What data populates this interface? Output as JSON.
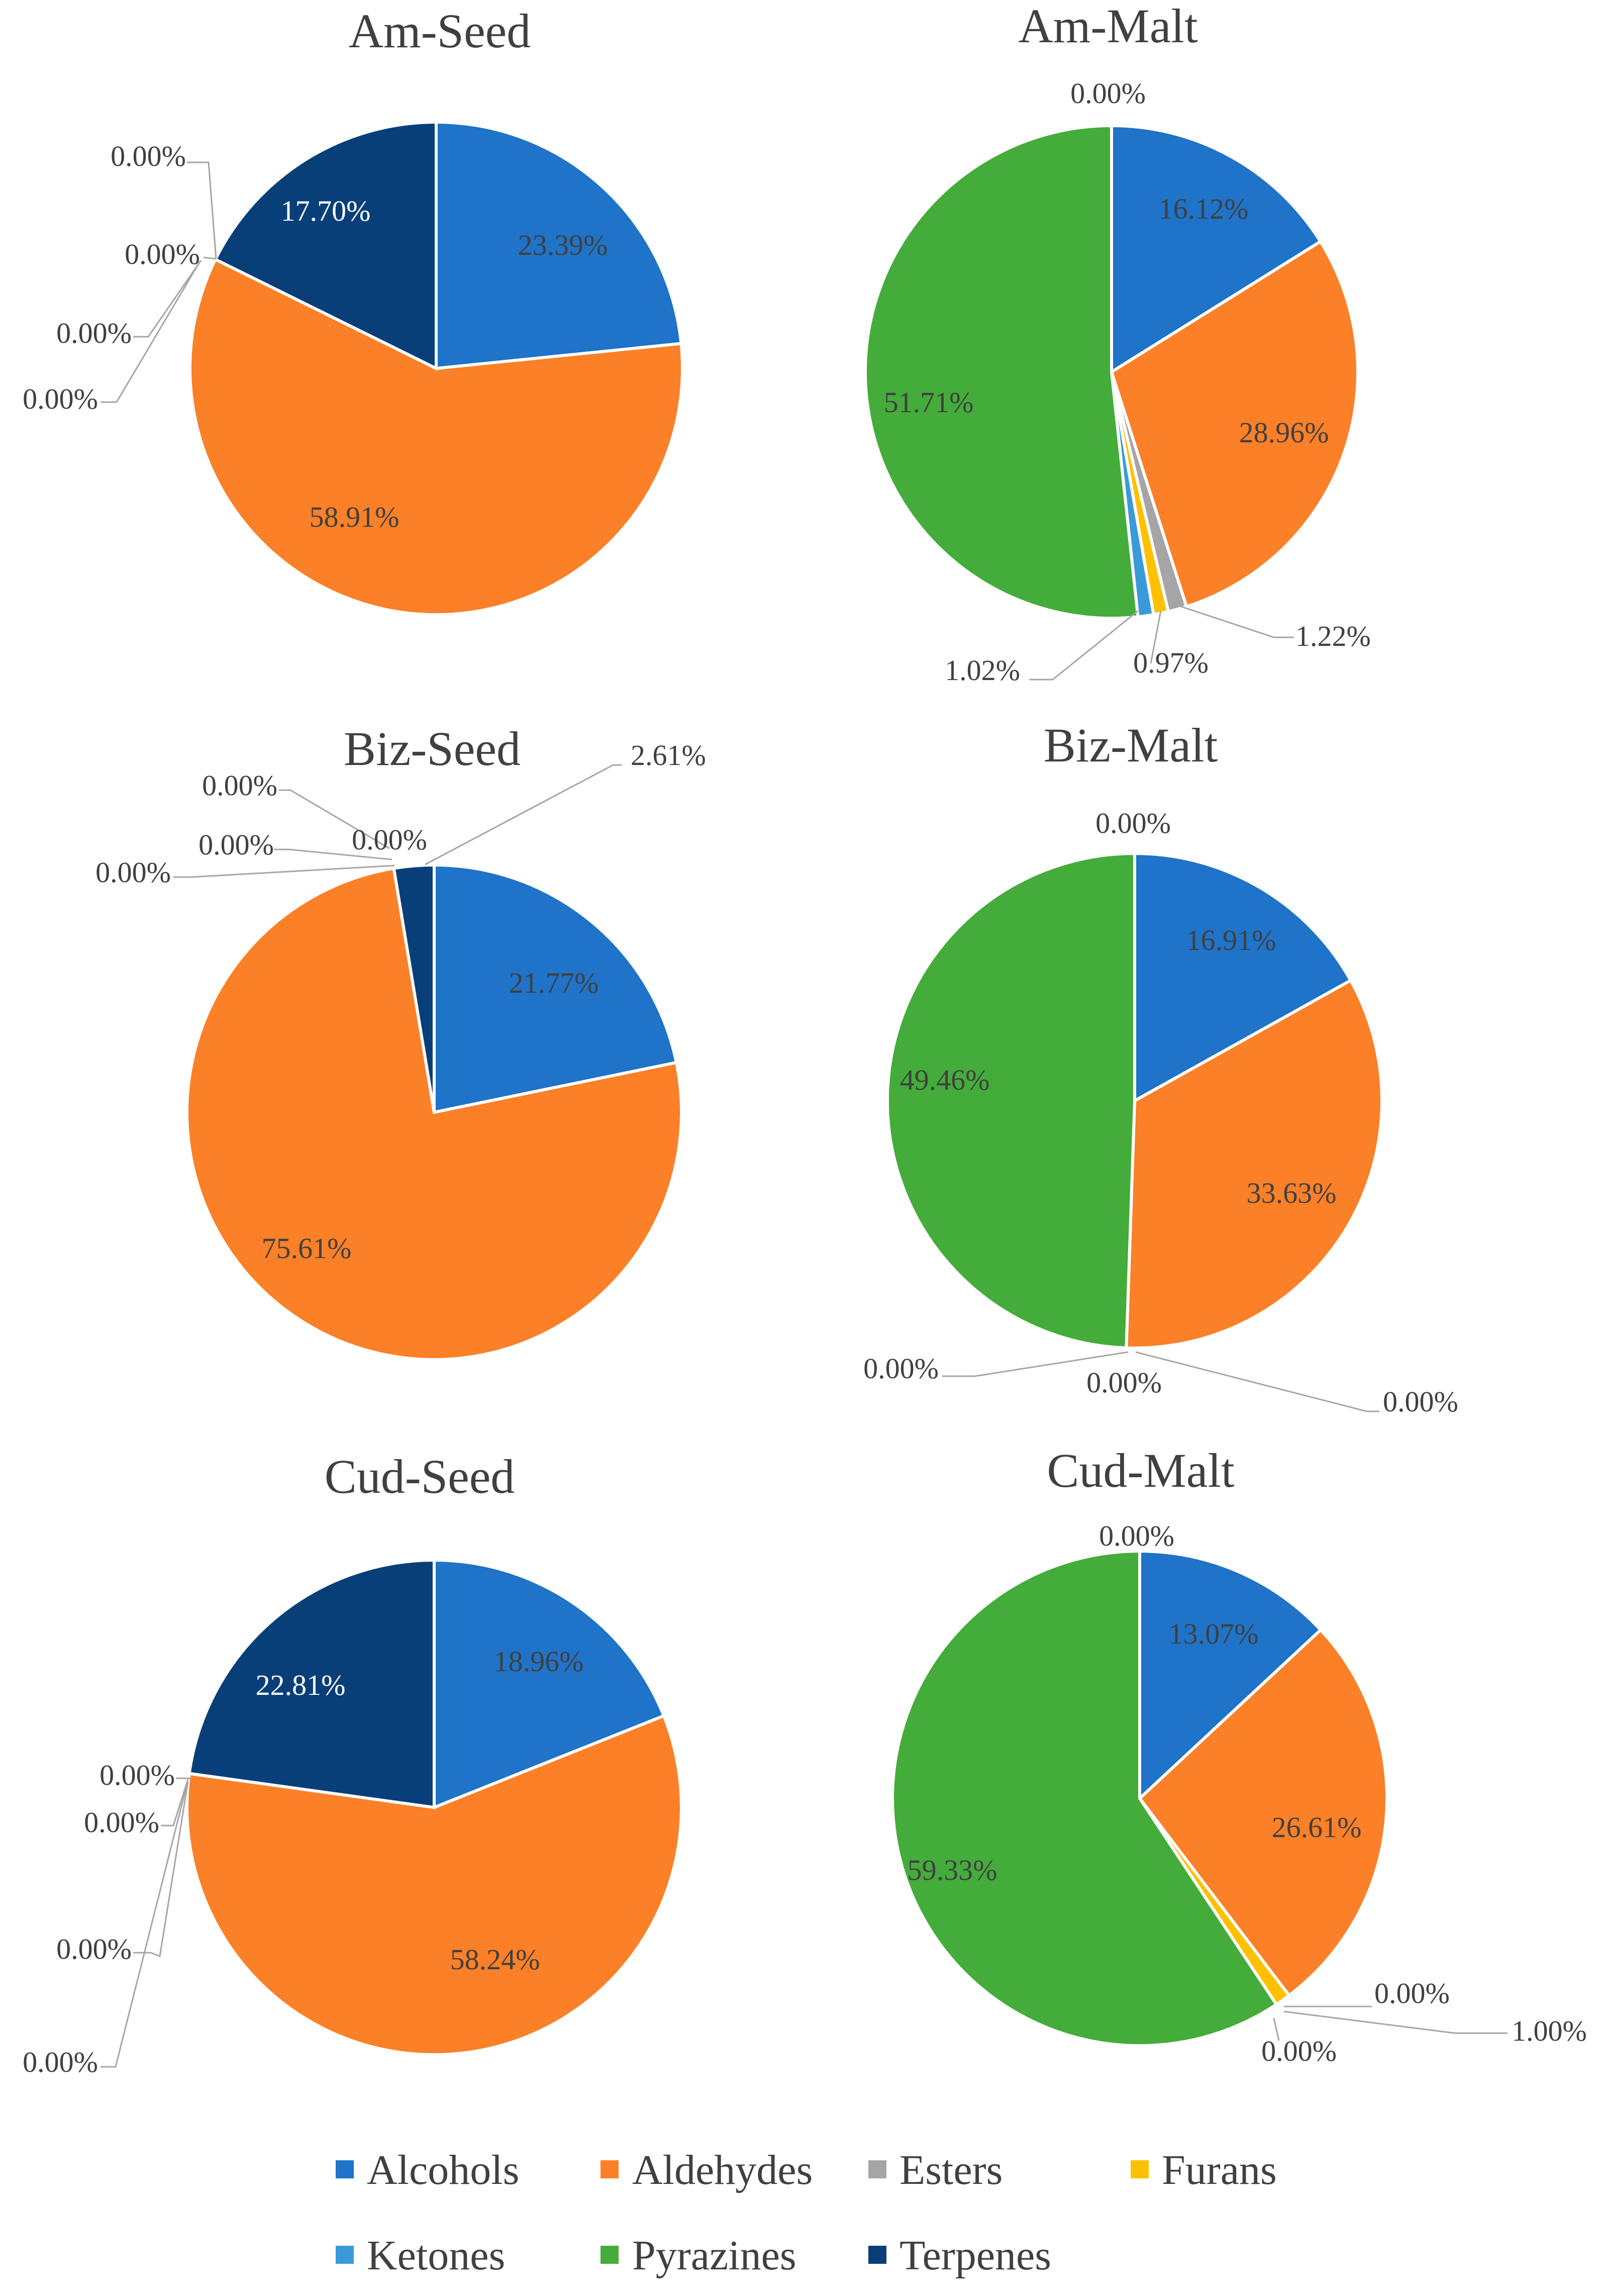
{
  "chart_data": [
    {
      "type": "pie",
      "title": "Am-Seed",
      "categories": [
        "Alcohols",
        "Aldehydes",
        "Esters",
        "Furans",
        "Ketones",
        "Pyrazines",
        "Terpenes"
      ],
      "values": [
        23.39,
        58.91,
        0,
        0,
        0,
        0,
        17.7
      ],
      "labels": [
        "23.39%",
        "58.91%",
        "0.00%",
        "0.00%",
        "0.00%",
        "0.00%",
        "17.70%"
      ]
    },
    {
      "type": "pie",
      "title": "Am-Malt",
      "categories": [
        "Alcohols",
        "Aldehydes",
        "Esters",
        "Furans",
        "Ketones",
        "Pyrazines",
        "Terpenes"
      ],
      "values": [
        16.12,
        28.96,
        1.22,
        0.97,
        1.02,
        51.71,
        0
      ],
      "labels": [
        "16.12%",
        "28.96%",
        "1.22%",
        "0.97%",
        "1.02%",
        "51.71%",
        "0.00%"
      ]
    },
    {
      "type": "pie",
      "title": "Biz-Seed",
      "categories": [
        "Alcohols",
        "Aldehydes",
        "Esters",
        "Furans",
        "Ketones",
        "Pyrazines",
        "Terpenes"
      ],
      "values": [
        21.77,
        75.61,
        0,
        0,
        0,
        0,
        2.61
      ],
      "labels": [
        "21.77%",
        "75.61%",
        "0.00%",
        "0.00%",
        "0.00%",
        "0.00%",
        "2.61%"
      ]
    },
    {
      "type": "pie",
      "title": "Biz-Malt",
      "categories": [
        "Alcohols",
        "Aldehydes",
        "Esters",
        "Furans",
        "Ketones",
        "Pyrazines",
        "Terpenes"
      ],
      "values": [
        16.91,
        33.63,
        0,
        0,
        0,
        49.46,
        0
      ],
      "labels": [
        "16.91%",
        "33.63%",
        "0.00%",
        "0.00%",
        "0.00%",
        "49.46%",
        "0.00%"
      ]
    },
    {
      "type": "pie",
      "title": "Cud-Seed",
      "categories": [
        "Alcohols",
        "Aldehydes",
        "Esters",
        "Furans",
        "Ketones",
        "Pyrazines",
        "Terpenes"
      ],
      "values": [
        18.96,
        58.24,
        0,
        0,
        0,
        0,
        22.81
      ],
      "labels": [
        "18.96%",
        "58.24%",
        "0.00%",
        "0.00%",
        "0.00%",
        "0.00%",
        "22.81%"
      ]
    },
    {
      "type": "pie",
      "title": "Cud-Malt",
      "categories": [
        "Alcohols",
        "Aldehydes",
        "Esters",
        "Furans",
        "Ketones",
        "Pyrazines",
        "Terpenes"
      ],
      "values": [
        13.07,
        26.61,
        0,
        1.0,
        0,
        59.33,
        0
      ],
      "labels": [
        "13.07%",
        "26.61%",
        "0.00%",
        "1.00%",
        "0.00%",
        "59.33%",
        "0.00%"
      ]
    }
  ],
  "legend": {
    "placement": "bottom",
    "items": [
      {
        "label": "Alcohols",
        "color": "#1f73c8"
      },
      {
        "label": "Aldehydes",
        "color": "#fb8027"
      },
      {
        "label": "Esters",
        "color": "#a5a5a5"
      },
      {
        "label": "Furans",
        "color": "#ffc000"
      },
      {
        "label": "Ketones",
        "color": "#3a9ad9"
      },
      {
        "label": "Pyrazines",
        "color": "#44ac3a"
      },
      {
        "label": "Terpenes",
        "color": "#093f79"
      }
    ]
  }
}
